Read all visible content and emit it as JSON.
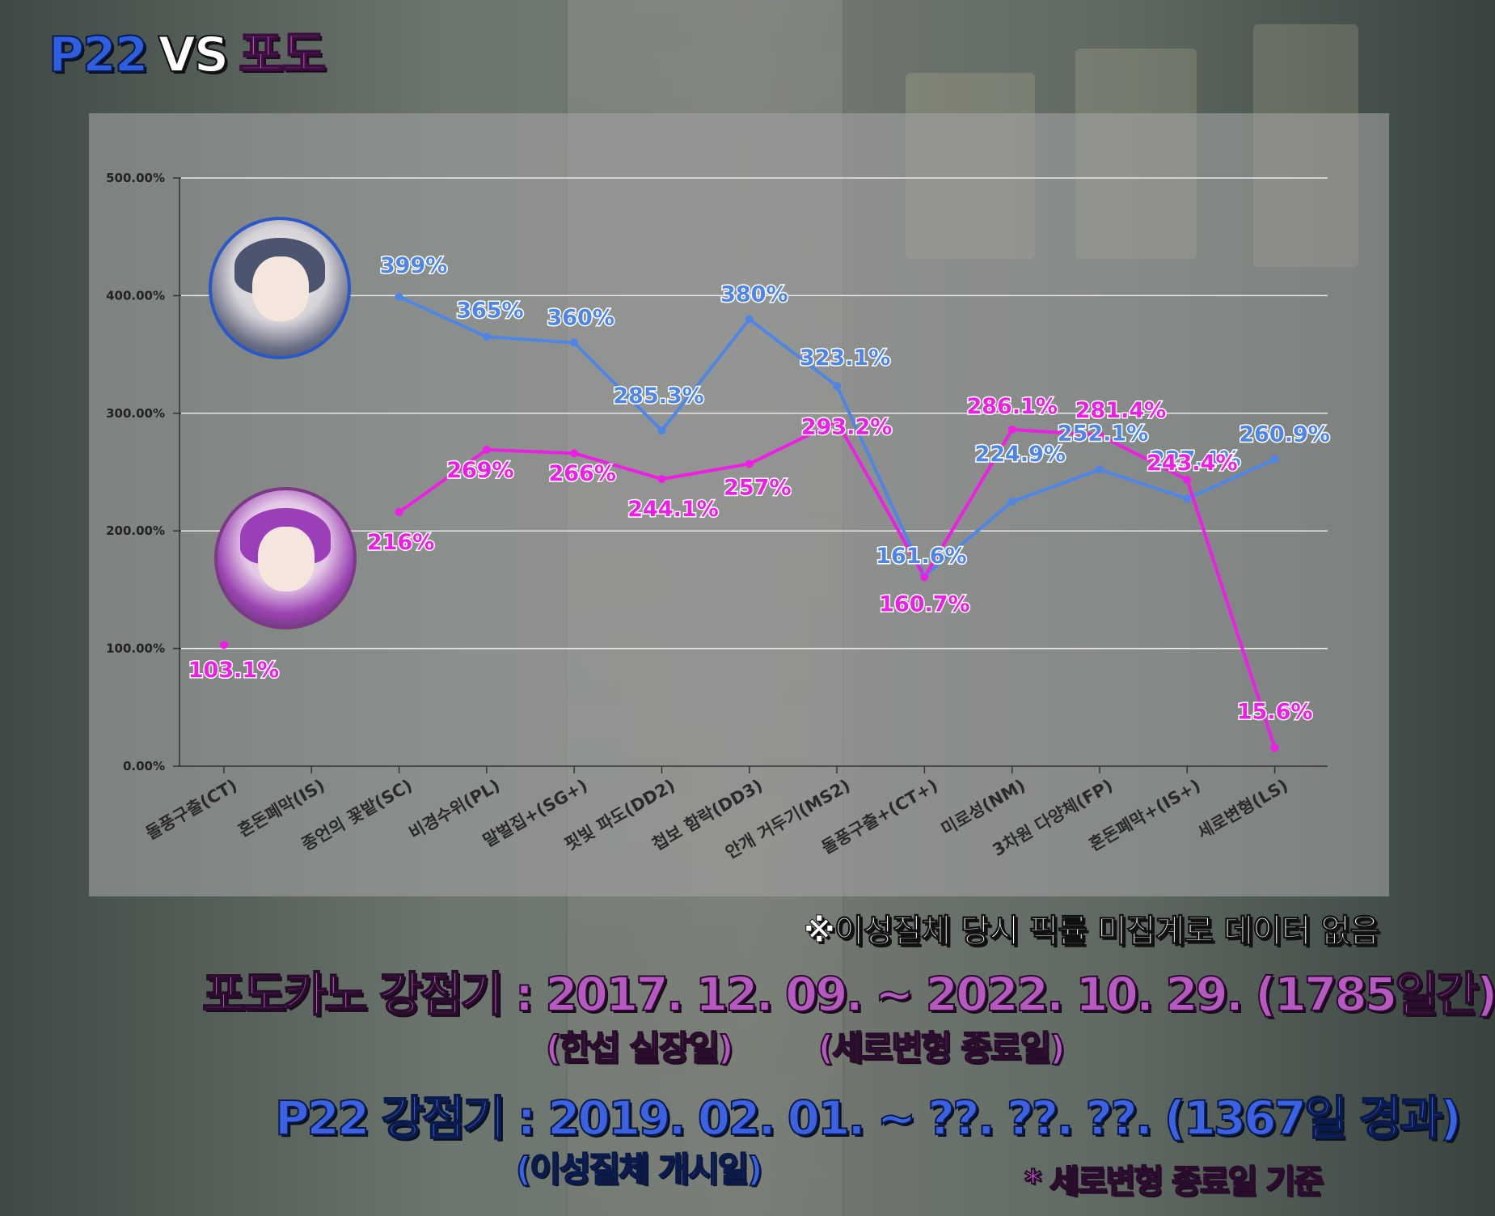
{
  "title": {
    "left": "P22",
    "vs": "VS",
    "right": "포도"
  },
  "chart_data": {
    "type": "line",
    "categories": [
      "돌풍구출(CT)",
      "혼돈폐막(IS)",
      "종언의 꽃밭(SC)",
      "비경수위(PL)",
      "말벌집+(SG+)",
      "핏빛 파도(DD2)",
      "첩보 함락(DD3)",
      "안개 거두기(MS2)",
      "돌풍구출+(CT+)",
      "미로성(NM)",
      "3차원 다양체(FP)",
      "혼돈폐막+(IS+)",
      "세로변형(LS)"
    ],
    "y_ticks": [
      "0.00%",
      "100.00%",
      "200.00%",
      "300.00%",
      "400.00%",
      "500.00%"
    ],
    "ylim": [
      0,
      500
    ],
    "grid": true,
    "series": [
      {
        "color": "#4f86e6",
        "values": [
          null,
          null,
          399,
          365,
          360,
          285.3,
          380,
          323.1,
          161.6,
          224.9,
          252.1,
          227.4,
          260.9
        ],
        "labels": [
          null,
          null,
          "399%",
          "365%",
          "360%",
          "285.3%",
          "380%",
          "323.1%",
          "161.6%",
          "224.9%",
          "252.1%",
          "227.4%",
          "260.9%"
        ]
      },
      {
        "color": "#ee1ee6",
        "values": [
          103.1,
          null,
          216,
          269,
          266,
          244.1,
          257,
          293.2,
          160.7,
          286.1,
          281.4,
          243.4,
          15.6
        ],
        "labels": [
          "103.1%",
          null,
          "216%",
          "269%",
          "266%",
          "244.1%",
          "257%",
          "293.2%",
          "160.7%",
          "286.1%",
          "281.4%",
          "243.4%",
          "15.6%"
        ]
      }
    ]
  },
  "note": "※이성질체 당시 픽률 미집계로 데이터 없음",
  "period_podo": {
    "text": "포도카노 강점기 : 2017. 12. 09. ~ 2022. 10. 29. (1785일간)",
    "start_note": "(한섭 실장일)",
    "end_note": "(세로변형 종료일)"
  },
  "period_p22": {
    "text": "P22 강점기 : 2019. 02. 01. ~ ??. ??. ??. (1367일 경과)",
    "start_note": "(이성질체 개시일)",
    "footnote": "* 세로변형 종료일 기준"
  }
}
